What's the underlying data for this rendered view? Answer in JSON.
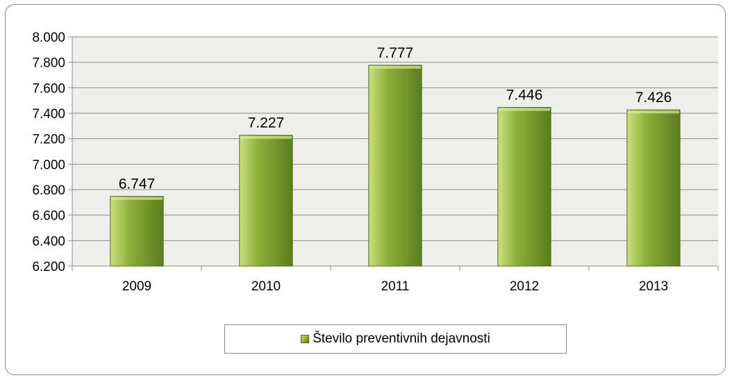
{
  "chart_data": {
    "type": "bar",
    "categories": [
      "2009",
      "2010",
      "2011",
      "2012",
      "2013"
    ],
    "series": [
      {
        "name": "Število preventivnih dejavnosti",
        "values": [
          6747,
          7227,
          7777,
          7446,
          7426
        ]
      }
    ],
    "data_labels": [
      "6.747",
      "7.227",
      "7.777",
      "7.446",
      "7.426"
    ],
    "ylim": [
      6200,
      8000
    ],
    "y_ticks": [
      6200,
      6400,
      6600,
      6800,
      7000,
      7200,
      7400,
      7600,
      7800,
      8000
    ],
    "y_tick_labels": [
      "6.200",
      "6.400",
      "6.600",
      "6.800",
      "7.000",
      "7.200",
      "7.400",
      "7.600",
      "7.800",
      "8.000"
    ],
    "grid": true,
    "legend_position": "bottom",
    "colors": {
      "bar_light": "#c9e27c",
      "bar_mid": "#8db03a",
      "bar_dark": "#5c7c1f",
      "plot_bg": "#eeeeea",
      "gridline": "#8c8c8c"
    }
  },
  "legend": {
    "label": "Število preventivnih dejavnosti"
  }
}
